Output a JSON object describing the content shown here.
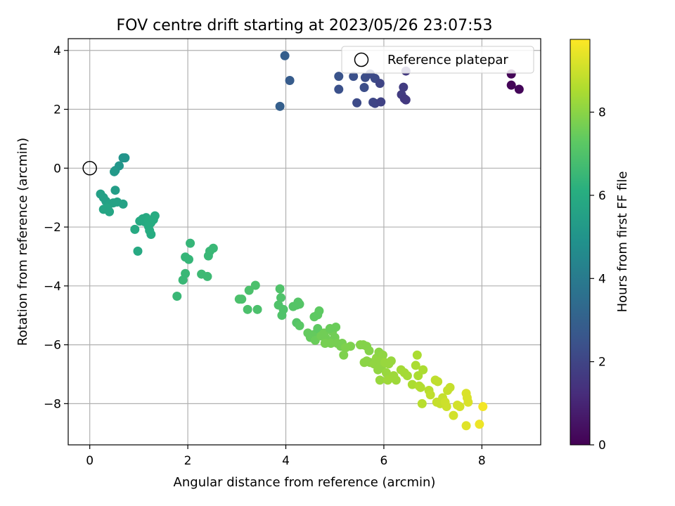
{
  "chart_data": {
    "type": "scatter",
    "title": "FOV centre drift starting at 2023/05/26 23:07:53",
    "xlabel": "Angular distance from reference (arcmin)",
    "ylabel": "Rotation from reference (arcmin)",
    "xlim": [
      -0.44,
      9.2
    ],
    "ylim": [
      -9.4,
      4.4
    ],
    "xticks": [
      0,
      2,
      4,
      6,
      8
    ],
    "yticks": [
      -8,
      -6,
      -4,
      -2,
      0,
      2,
      4
    ],
    "grid": true,
    "legend": {
      "position": "top-right",
      "entries": [
        "Reference platepar"
      ]
    },
    "reference_point": {
      "x": 0,
      "y": 0,
      "label": "Reference platepar"
    },
    "colorbar": {
      "label": "Hours from first FF file",
      "colormap": "viridis",
      "range": [
        0,
        9.75
      ],
      "ticks": [
        0,
        2,
        4,
        6,
        8
      ]
    },
    "points": [
      {
        "x": 8.6,
        "y": 3.2,
        "c": 0.1
      },
      {
        "x": 8.6,
        "y": 2.82,
        "c": 0.1
      },
      {
        "x": 8.76,
        "y": 2.68,
        "c": 0.15
      },
      {
        "x": 3.98,
        "y": 3.82,
        "c": 2.9
      },
      {
        "x": 4.08,
        "y": 2.98,
        "c": 2.8
      },
      {
        "x": 3.88,
        "y": 2.1,
        "c": 2.95
      },
      {
        "x": 5.08,
        "y": 3.12,
        "c": 2.5
      },
      {
        "x": 5.38,
        "y": 3.12,
        "c": 2.4
      },
      {
        "x": 5.62,
        "y": 3.08,
        "c": 2.3
      },
      {
        "x": 5.72,
        "y": 3.2,
        "c": 2.2
      },
      {
        "x": 5.82,
        "y": 3.05,
        "c": 2.2
      },
      {
        "x": 5.08,
        "y": 2.68,
        "c": 2.4
      },
      {
        "x": 5.6,
        "y": 2.74,
        "c": 2.3
      },
      {
        "x": 5.92,
        "y": 2.88,
        "c": 2.0
      },
      {
        "x": 5.45,
        "y": 2.22,
        "c": 2.2
      },
      {
        "x": 5.78,
        "y": 2.24,
        "c": 2.1
      },
      {
        "x": 5.82,
        "y": 2.2,
        "c": 2.0
      },
      {
        "x": 5.94,
        "y": 2.25,
        "c": 1.9
      },
      {
        "x": 6.45,
        "y": 3.3,
        "c": 1.6
      },
      {
        "x": 6.4,
        "y": 2.75,
        "c": 1.7
      },
      {
        "x": 6.36,
        "y": 2.5,
        "c": 1.7
      },
      {
        "x": 6.42,
        "y": 2.36,
        "c": 1.6
      },
      {
        "x": 6.45,
        "y": 2.32,
        "c": 1.6
      },
      {
        "x": 0.68,
        "y": 0.35,
        "c": 5.0
      },
      {
        "x": 0.72,
        "y": 0.35,
        "c": 5.0
      },
      {
        "x": 0.6,
        "y": 0.08,
        "c": 5.1
      },
      {
        "x": 0.52,
        "y": -0.08,
        "c": 5.1
      },
      {
        "x": 0.5,
        "y": -0.12,
        "c": 5.2
      },
      {
        "x": 0.22,
        "y": -0.88,
        "c": 5.5
      },
      {
        "x": 0.28,
        "y": -1.0,
        "c": 5.5
      },
      {
        "x": 0.33,
        "y": -1.12,
        "c": 5.5
      },
      {
        "x": 0.52,
        "y": -0.75,
        "c": 5.4
      },
      {
        "x": 0.4,
        "y": -1.22,
        "c": 5.6
      },
      {
        "x": 0.48,
        "y": -1.18,
        "c": 5.6
      },
      {
        "x": 0.56,
        "y": -1.15,
        "c": 5.6
      },
      {
        "x": 0.68,
        "y": -1.22,
        "c": 5.6
      },
      {
        "x": 0.28,
        "y": -1.4,
        "c": 5.7
      },
      {
        "x": 0.35,
        "y": -1.35,
        "c": 5.7
      },
      {
        "x": 0.4,
        "y": -1.48,
        "c": 5.7
      },
      {
        "x": 0.92,
        "y": -2.08,
        "c": 5.9
      },
      {
        "x": 1.02,
        "y": -1.8,
        "c": 5.9
      },
      {
        "x": 1.08,
        "y": -1.72,
        "c": 5.9
      },
      {
        "x": 1.12,
        "y": -1.82,
        "c": 5.9
      },
      {
        "x": 1.15,
        "y": -1.68,
        "c": 5.9
      },
      {
        "x": 1.2,
        "y": -1.78,
        "c": 6.0
      },
      {
        "x": 1.25,
        "y": -1.85,
        "c": 6.0
      },
      {
        "x": 1.3,
        "y": -1.75,
        "c": 6.0
      },
      {
        "x": 1.33,
        "y": -1.62,
        "c": 6.0
      },
      {
        "x": 1.2,
        "y": -1.98,
        "c": 6.0
      },
      {
        "x": 1.22,
        "y": -2.12,
        "c": 6.0
      },
      {
        "x": 1.25,
        "y": -2.25,
        "c": 6.0
      },
      {
        "x": 0.98,
        "y": -2.82,
        "c": 5.9
      },
      {
        "x": 2.05,
        "y": -2.55,
        "c": 6.4
      },
      {
        "x": 1.95,
        "y": -3.02,
        "c": 6.4
      },
      {
        "x": 2.02,
        "y": -3.1,
        "c": 6.4
      },
      {
        "x": 1.95,
        "y": -3.58,
        "c": 6.5
      },
      {
        "x": 1.9,
        "y": -3.8,
        "c": 6.5
      },
      {
        "x": 1.78,
        "y": -4.35,
        "c": 6.5
      },
      {
        "x": 2.28,
        "y": -3.6,
        "c": 6.6
      },
      {
        "x": 2.4,
        "y": -3.68,
        "c": 6.6
      },
      {
        "x": 2.42,
        "y": -2.98,
        "c": 6.5
      },
      {
        "x": 2.45,
        "y": -2.82,
        "c": 6.5
      },
      {
        "x": 2.52,
        "y": -2.72,
        "c": 6.5
      },
      {
        "x": 3.05,
        "y": -4.45,
        "c": 6.9
      },
      {
        "x": 3.1,
        "y": -4.45,
        "c": 6.9
      },
      {
        "x": 3.22,
        "y": -4.8,
        "c": 6.9
      },
      {
        "x": 3.25,
        "y": -4.15,
        "c": 6.9
      },
      {
        "x": 3.38,
        "y": -3.98,
        "c": 6.9
      },
      {
        "x": 3.42,
        "y": -4.8,
        "c": 6.9
      },
      {
        "x": 3.88,
        "y": -4.1,
        "c": 7.0
      },
      {
        "x": 3.9,
        "y": -4.4,
        "c": 7.0
      },
      {
        "x": 3.85,
        "y": -4.65,
        "c": 7.0
      },
      {
        "x": 3.95,
        "y": -4.8,
        "c": 7.0
      },
      {
        "x": 3.92,
        "y": -5.0,
        "c": 7.0
      },
      {
        "x": 4.15,
        "y": -4.7,
        "c": 7.1
      },
      {
        "x": 4.22,
        "y": -4.65,
        "c": 7.1
      },
      {
        "x": 4.25,
        "y": -4.55,
        "c": 7.1
      },
      {
        "x": 4.28,
        "y": -4.62,
        "c": 7.1
      },
      {
        "x": 4.22,
        "y": -5.25,
        "c": 7.1
      },
      {
        "x": 4.28,
        "y": -5.35,
        "c": 7.2
      },
      {
        "x": 4.45,
        "y": -5.6,
        "c": 7.4
      },
      {
        "x": 4.5,
        "y": -5.75,
        "c": 7.4
      },
      {
        "x": 4.58,
        "y": -5.65,
        "c": 7.4
      },
      {
        "x": 4.6,
        "y": -5.85,
        "c": 7.5
      },
      {
        "x": 4.65,
        "y": -5.45,
        "c": 7.3
      },
      {
        "x": 4.58,
        "y": -5.05,
        "c": 7.3
      },
      {
        "x": 4.65,
        "y": -4.98,
        "c": 7.3
      },
      {
        "x": 4.68,
        "y": -4.85,
        "c": 7.3
      },
      {
        "x": 4.72,
        "y": -5.7,
        "c": 7.6
      },
      {
        "x": 4.78,
        "y": -5.6,
        "c": 7.6
      },
      {
        "x": 4.82,
        "y": -5.78,
        "c": 7.6
      },
      {
        "x": 4.88,
        "y": -5.9,
        "c": 7.6
      },
      {
        "x": 4.95,
        "y": -5.55,
        "c": 7.6
      },
      {
        "x": 5.0,
        "y": -5.75,
        "c": 7.6
      },
      {
        "x": 4.9,
        "y": -5.45,
        "c": 7.5
      },
      {
        "x": 4.92,
        "y": -5.95,
        "c": 7.7
      },
      {
        "x": 5.02,
        "y": -5.4,
        "c": 7.5
      },
      {
        "x": 4.8,
        "y": -5.95,
        "c": 7.7
      },
      {
        "x": 5.05,
        "y": -5.95,
        "c": 7.7
      },
      {
        "x": 5.12,
        "y": -6.05,
        "c": 7.7
      },
      {
        "x": 5.15,
        "y": -5.95,
        "c": 7.7
      },
      {
        "x": 5.18,
        "y": -6.35,
        "c": 7.8
      },
      {
        "x": 5.22,
        "y": -6.1,
        "c": 7.8
      },
      {
        "x": 5.32,
        "y": -6.05,
        "c": 7.8
      },
      {
        "x": 5.52,
        "y": -6.0,
        "c": 7.9
      },
      {
        "x": 5.58,
        "y": -6.0,
        "c": 7.9
      },
      {
        "x": 5.65,
        "y": -6.05,
        "c": 7.9
      },
      {
        "x": 5.7,
        "y": -6.2,
        "c": 7.9
      },
      {
        "x": 5.6,
        "y": -6.6,
        "c": 8.0
      },
      {
        "x": 5.65,
        "y": -6.55,
        "c": 8.0
      },
      {
        "x": 5.72,
        "y": -6.6,
        "c": 8.0
      },
      {
        "x": 5.8,
        "y": -6.65,
        "c": 8.1
      },
      {
        "x": 5.85,
        "y": -6.45,
        "c": 8.1
      },
      {
        "x": 5.88,
        "y": -6.85,
        "c": 8.1
      },
      {
        "x": 5.9,
        "y": -6.25,
        "c": 8.0
      },
      {
        "x": 5.92,
        "y": -6.55,
        "c": 8.1
      },
      {
        "x": 5.95,
        "y": -6.75,
        "c": 8.1
      },
      {
        "x": 5.92,
        "y": -7.2,
        "c": 8.2
      },
      {
        "x": 5.98,
        "y": -6.35,
        "c": 8.1
      },
      {
        "x": 6.02,
        "y": -6.6,
        "c": 8.2
      },
      {
        "x": 6.05,
        "y": -6.95,
        "c": 8.2
      },
      {
        "x": 6.08,
        "y": -7.2,
        "c": 8.3
      },
      {
        "x": 6.1,
        "y": -6.65,
        "c": 8.2
      },
      {
        "x": 6.15,
        "y": -6.55,
        "c": 8.2
      },
      {
        "x": 6.2,
        "y": -7.05,
        "c": 8.3
      },
      {
        "x": 6.25,
        "y": -7.2,
        "c": 8.3
      },
      {
        "x": 6.35,
        "y": -6.85,
        "c": 8.4
      },
      {
        "x": 6.42,
        "y": -6.95,
        "c": 8.4
      },
      {
        "x": 6.48,
        "y": -7.05,
        "c": 8.4
      },
      {
        "x": 6.58,
        "y": -7.35,
        "c": 8.5
      },
      {
        "x": 6.65,
        "y": -6.7,
        "c": 8.5
      },
      {
        "x": 6.68,
        "y": -6.35,
        "c": 8.5
      },
      {
        "x": 6.7,
        "y": -7.05,
        "c": 8.5
      },
      {
        "x": 6.72,
        "y": -7.4,
        "c": 8.6
      },
      {
        "x": 6.75,
        "y": -7.45,
        "c": 8.6
      },
      {
        "x": 6.8,
        "y": -6.85,
        "c": 8.5
      },
      {
        "x": 6.78,
        "y": -8.0,
        "c": 8.7
      },
      {
        "x": 6.92,
        "y": -7.55,
        "c": 8.7
      },
      {
        "x": 6.95,
        "y": -7.7,
        "c": 8.8
      },
      {
        "x": 7.05,
        "y": -7.2,
        "c": 8.8
      },
      {
        "x": 7.1,
        "y": -7.25,
        "c": 8.8
      },
      {
        "x": 7.08,
        "y": -7.95,
        "c": 8.9
      },
      {
        "x": 7.15,
        "y": -8.0,
        "c": 8.9
      },
      {
        "x": 7.2,
        "y": -7.8,
        "c": 8.9
      },
      {
        "x": 7.25,
        "y": -7.95,
        "c": 9.0
      },
      {
        "x": 7.28,
        "y": -8.1,
        "c": 9.0
      },
      {
        "x": 7.3,
        "y": -7.55,
        "c": 8.9
      },
      {
        "x": 7.35,
        "y": -7.45,
        "c": 8.9
      },
      {
        "x": 7.42,
        "y": -8.4,
        "c": 9.1
      },
      {
        "x": 7.5,
        "y": -8.05,
        "c": 9.1
      },
      {
        "x": 7.55,
        "y": -8.1,
        "c": 9.1
      },
      {
        "x": 7.68,
        "y": -7.65,
        "c": 9.2
      },
      {
        "x": 7.7,
        "y": -7.8,
        "c": 9.2
      },
      {
        "x": 7.72,
        "y": -7.95,
        "c": 9.2
      },
      {
        "x": 7.68,
        "y": -8.75,
        "c": 9.3
      },
      {
        "x": 7.95,
        "y": -8.7,
        "c": 9.5
      },
      {
        "x": 8.02,
        "y": -8.1,
        "c": 9.6
      }
    ]
  }
}
